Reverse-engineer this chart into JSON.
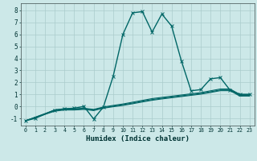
{
  "xlabel": "Humidex (Indice chaleur)",
  "xlim": [
    -0.5,
    23.5
  ],
  "ylim": [
    -1.6,
    8.6
  ],
  "background_color": "#cce8e8",
  "grid_color": "#aacccc",
  "line_color": "#006666",
  "lines": [
    {
      "x": [
        0,
        1,
        3,
        4,
        5,
        6,
        7,
        8,
        9,
        10,
        11,
        12,
        13,
        14,
        15,
        16,
        17,
        18,
        19,
        20,
        21,
        22,
        23
      ],
      "y": [
        -1.2,
        -1.0,
        -0.3,
        -0.2,
        -0.15,
        0.0,
        -1.05,
        -0.05,
        2.5,
        6.0,
        7.8,
        7.9,
        6.2,
        7.7,
        6.7,
        3.8,
        1.3,
        1.4,
        2.3,
        2.4,
        1.35,
        1.0,
        1.0
      ],
      "marker": "x",
      "linewidth": 1.0
    },
    {
      "x": [
        0,
        3,
        4,
        5,
        6,
        7,
        8,
        9,
        10,
        11,
        12,
        13,
        14,
        15,
        16,
        17,
        18,
        19,
        20,
        21,
        22,
        23
      ],
      "y": [
        -1.2,
        -0.3,
        -0.2,
        -0.2,
        -0.15,
        -0.25,
        -0.05,
        0.08,
        0.2,
        0.35,
        0.5,
        0.65,
        0.75,
        0.85,
        0.95,
        1.05,
        1.15,
        1.3,
        1.45,
        1.45,
        1.0,
        1.0
      ],
      "marker": null,
      "linewidth": 0.8
    },
    {
      "x": [
        0,
        3,
        4,
        5,
        6,
        7,
        8,
        9,
        10,
        11,
        12,
        13,
        14,
        15,
        16,
        17,
        18,
        19,
        20,
        21,
        22,
        23
      ],
      "y": [
        -1.2,
        -0.35,
        -0.25,
        -0.25,
        -0.2,
        -0.3,
        -0.1,
        0.02,
        0.14,
        0.28,
        0.43,
        0.57,
        0.68,
        0.78,
        0.88,
        0.98,
        1.08,
        1.22,
        1.37,
        1.37,
        0.92,
        0.92
      ],
      "marker": null,
      "linewidth": 0.8
    },
    {
      "x": [
        0,
        3,
        4,
        5,
        6,
        7,
        8,
        9,
        10,
        11,
        12,
        13,
        14,
        15,
        16,
        17,
        18,
        19,
        20,
        21,
        22,
        23
      ],
      "y": [
        -1.2,
        -0.4,
        -0.3,
        -0.3,
        -0.25,
        -0.35,
        -0.15,
        -0.03,
        0.08,
        0.22,
        0.37,
        0.51,
        0.62,
        0.72,
        0.82,
        0.92,
        1.02,
        1.16,
        1.31,
        1.31,
        0.86,
        0.86
      ],
      "marker": null,
      "linewidth": 0.8
    }
  ],
  "xticks": [
    0,
    1,
    2,
    3,
    4,
    5,
    6,
    7,
    8,
    9,
    10,
    11,
    12,
    13,
    14,
    15,
    16,
    17,
    18,
    19,
    20,
    21,
    22,
    23
  ],
  "yticks": [
    -1,
    0,
    1,
    2,
    3,
    4,
    5,
    6,
    7,
    8
  ],
  "xtick_fontsize": 4.8,
  "ytick_fontsize": 5.5,
  "xlabel_fontsize": 6.5
}
